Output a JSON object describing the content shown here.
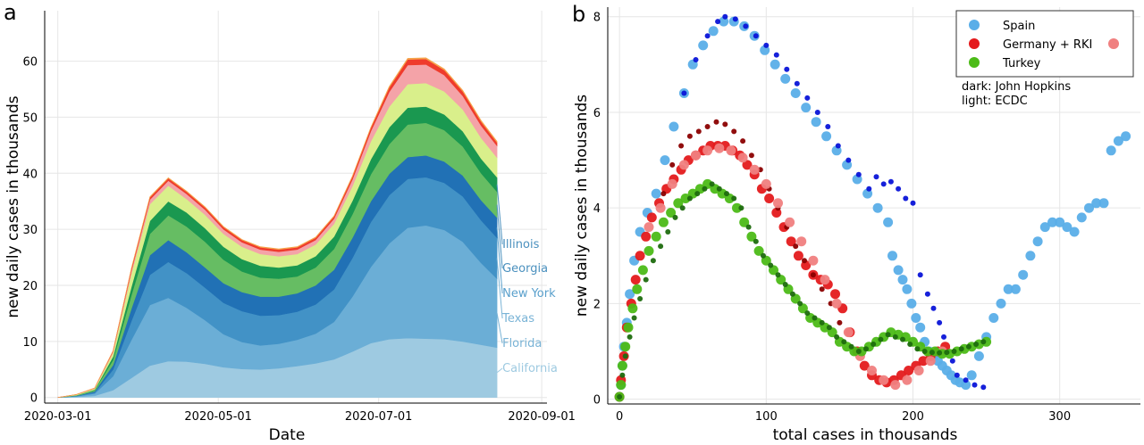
{
  "chart_data": [
    {
      "panel_label": "a",
      "type": "area",
      "stacked": true,
      "xlabel": "Date",
      "ylabel": "new daily cases in thousands",
      "xlim": [
        "2020-02-25",
        "2020-09-03"
      ],
      "ylim": [
        -1,
        69
      ],
      "x_ticks": [
        "2020-03-01",
        "2020-05-01",
        "2020-07-01",
        "2020-09-01"
      ],
      "y_ticks": [
        0,
        10,
        20,
        30,
        40,
        50,
        60
      ],
      "grid": true,
      "x": [
        "2020-03-01",
        "2020-03-08",
        "2020-03-15",
        "2020-03-22",
        "2020-03-29",
        "2020-04-05",
        "2020-04-12",
        "2020-04-19",
        "2020-04-26",
        "2020-05-03",
        "2020-05-10",
        "2020-05-17",
        "2020-05-24",
        "2020-05-31",
        "2020-06-07",
        "2020-06-14",
        "2020-06-21",
        "2020-06-28",
        "2020-07-05",
        "2020-07-12",
        "2020-07-19",
        "2020-07-26",
        "2020-08-02",
        "2020-08-09",
        "2020-08-15"
      ],
      "series": [
        {
          "name": "California",
          "color": "#9ecae1",
          "values": [
            0,
            0.1,
            0.3,
            1.3,
            3.5,
            5.7,
            6.5,
            6.4,
            6.0,
            5.4,
            5.1,
            5.0,
            5.2,
            5.6,
            6.1,
            6.8,
            8.2,
            9.7,
            10.4,
            10.6,
            10.5,
            10.4,
            10.0,
            9.4,
            8.9
          ]
        },
        {
          "name": "Florida",
          "color": "#6baed6",
          "values": [
            0,
            0.1,
            0.4,
            2.5,
            6.8,
            10.8,
            11.3,
            9.6,
            7.8,
            5.9,
            4.8,
            4.3,
            4.4,
            4.7,
            5.3,
            6.7,
            9.8,
            13.6,
            17.1,
            19.7,
            20.2,
            19.5,
            17.8,
            14.6,
            12.3
          ]
        },
        {
          "name": "Texas",
          "color": "#4292c6",
          "values": [
            0,
            0.05,
            0.2,
            1.2,
            3.4,
            5.4,
            6.4,
            6.2,
            5.8,
            5.6,
            5.5,
            5.3,
            5.1,
            5.0,
            5.2,
            5.8,
            6.9,
            8.0,
            8.6,
            8.7,
            8.6,
            8.4,
            8.1,
            7.6,
            7.3
          ]
        },
        {
          "name": "New York",
          "color": "#2171b5",
          "values": [
            0,
            0.05,
            0.2,
            0.8,
            2.2,
            3.5,
            3.9,
            3.7,
            3.6,
            3.5,
            3.4,
            3.4,
            3.3,
            3.3,
            3.4,
            3.5,
            3.6,
            3.7,
            3.8,
            3.9,
            3.9,
            3.8,
            3.7,
            3.6,
            3.6
          ]
        },
        {
          "name": "Georgia",
          "color": "#66bd63",
          "values": [
            0,
            0.05,
            0.2,
            0.9,
            2.4,
            3.8,
            4.4,
            4.6,
            4.6,
            4.2,
            3.7,
            3.4,
            3.2,
            3.0,
            3.2,
            3.7,
            4.2,
            4.8,
            5.3,
            5.8,
            5.8,
            5.6,
            5.2,
            4.8,
            4.6
          ]
        },
        {
          "name": "Illinois",
          "color": "#1a9850",
          "values": [
            0,
            0.05,
            0.1,
            0.6,
            1.5,
            2.3,
            2.5,
            2.5,
            2.4,
            2.3,
            2.2,
            2.1,
            2.0,
            2.0,
            2.0,
            2.2,
            2.4,
            2.7,
            3.0,
            3.0,
            2.9,
            2.8,
            2.7,
            2.6,
            2.6
          ]
        },
        {
          "name": "",
          "color": "#d9ef8b",
          "values": [
            0,
            0.1,
            0.2,
            0.7,
            2.4,
            3.0,
            2.8,
            2.4,
            2.4,
            2.3,
            2.2,
            2.1,
            2.0,
            2.0,
            2.1,
            2.3,
            2.6,
            3.2,
            3.7,
            4.2,
            4.2,
            4.1,
            3.9,
            3.7,
            3.5
          ]
        },
        {
          "name": "",
          "color": "#f4a3a8",
          "values": [
            0,
            0.02,
            0.05,
            0.2,
            0.5,
            0.8,
            0.9,
            0.9,
            0.9,
            0.8,
            0.8,
            0.8,
            0.8,
            0.8,
            0.8,
            0.9,
            1.2,
            1.8,
            2.6,
            3.4,
            3.3,
            2.9,
            2.4,
            2.2,
            2.1
          ]
        },
        {
          "name": "",
          "color": "#ef3b2c",
          "values": [
            0,
            0.01,
            0.03,
            0.1,
            0.3,
            0.4,
            0.4,
            0.4,
            0.4,
            0.4,
            0.4,
            0.4,
            0.4,
            0.4,
            0.4,
            0.4,
            0.5,
            0.6,
            0.8,
            1.0,
            1.0,
            0.9,
            0.8,
            0.7,
            0.6
          ]
        },
        {
          "name": "",
          "color": "#f6a34b",
          "values": [
            0,
            0.01,
            0.02,
            0.05,
            0.1,
            0.1,
            0.1,
            0.1,
            0.1,
            0.1,
            0.1,
            0.1,
            0.1,
            0.1,
            0.1,
            0.1,
            0.1,
            0.1,
            0.2,
            0.2,
            0.2,
            0.2,
            0.2,
            0.2,
            0.2
          ]
        }
      ],
      "state_labels": [
        "Illinois",
        "Georgia",
        "New York",
        "Texas",
        "Florida",
        "California"
      ],
      "state_label_colors": [
        "#4a90be",
        "#4a90be",
        "#5aa0cc",
        "#79b3d6",
        "#79b3d6",
        "#9ecae1"
      ]
    },
    {
      "panel_label": "b",
      "type": "scatter",
      "xlabel": "total cases in thousands",
      "ylabel": "new daily cases in thousands",
      "xlim": [
        -8,
        355
      ],
      "ylim": [
        -0.1,
        8.2
      ],
      "x_ticks": [
        0,
        100,
        200,
        300
      ],
      "y_ticks": [
        0,
        2,
        4,
        6,
        8
      ],
      "grid": true,
      "legend_position": "top-right",
      "legend": [
        {
          "label": "Spain",
          "color": "#5aaee8"
        },
        {
          "label": "Germany + RKI",
          "color": "#e41a1c",
          "extra_color": "#f08080"
        },
        {
          "label": "Turkey",
          "color": "#4cbb17"
        }
      ],
      "legend_note": [
        "dark: John Hopkins",
        "light: ECDC"
      ],
      "series": [
        {
          "name": "Spain",
          "source": "ECDC",
          "color": "#5aaee8",
          "x": [
            0,
            1,
            2,
            3,
            5,
            7,
            10,
            14,
            19,
            25,
            31,
            37,
            44,
            50,
            57,
            64,
            71,
            78,
            85,
            92,
            99,
            106,
            113,
            120,
            127,
            134,
            141,
            148,
            155,
            162,
            169,
            176,
            183,
            186,
            190,
            193,
            196,
            199,
            202,
            205,
            208,
            211,
            214,
            217,
            220,
            223,
            226,
            229,
            232,
            236,
            240,
            245,
            250,
            255,
            260,
            265,
            270,
            275,
            280,
            285,
            290,
            295,
            300,
            305,
            310,
            315,
            320,
            325,
            330,
            335,
            340,
            345
          ],
          "y": [
            0.05,
            0.3,
            0.7,
            1.1,
            1.6,
            2.2,
            2.9,
            3.5,
            3.9,
            4.3,
            5.0,
            5.7,
            6.4,
            7.0,
            7.4,
            7.7,
            7.9,
            7.9,
            7.8,
            7.6,
            7.3,
            7.0,
            6.7,
            6.4,
            6.1,
            5.8,
            5.5,
            5.2,
            4.9,
            4.6,
            4.3,
            4.0,
            3.7,
            3.0,
            2.7,
            2.5,
            2.3,
            2.0,
            1.7,
            1.5,
            1.2,
            1.0,
            0.9,
            0.8,
            0.7,
            0.6,
            0.5,
            0.4,
            0.35,
            0.3,
            0.5,
            0.9,
            1.3,
            1.7,
            2.0,
            2.3,
            2.3,
            2.6,
            3.0,
            3.3,
            3.6,
            3.7,
            3.7,
            3.6,
            3.5,
            3.8,
            4.0,
            4.1,
            4.1,
            5.2,
            5.4,
            5.5
          ]
        },
        {
          "name": "Spain",
          "source": "John Hopkins",
          "color": "#0a14d8",
          "x": [
            44,
            52,
            60,
            67,
            72,
            79,
            86,
            93,
            100,
            107,
            114,
            121,
            128,
            135,
            142,
            149,
            156,
            163,
            170,
            175,
            180,
            185,
            190,
            195,
            200,
            205,
            210,
            214,
            218,
            221,
            224,
            227,
            230,
            236,
            242,
            248
          ],
          "y": [
            6.4,
            7.1,
            7.6,
            7.9,
            8.0,
            7.95,
            7.8,
            7.6,
            7.4,
            7.2,
            6.9,
            6.6,
            6.3,
            6.0,
            5.7,
            5.3,
            5.0,
            4.7,
            4.4,
            4.65,
            4.5,
            4.55,
            4.4,
            4.2,
            4.1,
            2.6,
            2.2,
            1.9,
            1.6,
            1.3,
            1.0,
            0.8,
            0.5,
            0.4,
            0.3,
            0.25
          ]
        },
        {
          "name": "Germany + RKI",
          "source": "ECDC",
          "color": "#e41a1c",
          "x": [
            0,
            1,
            3,
            5,
            8,
            11,
            14,
            18,
            22,
            27,
            32,
            37,
            42,
            47,
            52,
            57,
            62,
            67,
            72,
            77,
            82,
            87,
            92,
            97,
            102,
            107,
            112,
            117,
            122,
            127,
            132,
            137,
            142,
            147,
            152,
            157,
            162,
            167,
            172,
            177,
            182,
            187,
            192,
            197,
            202,
            207,
            212,
            217,
            222
          ],
          "y": [
            0.05,
            0.4,
            0.9,
            1.5,
            2.0,
            2.5,
            3.0,
            3.4,
            3.8,
            4.1,
            4.4,
            4.6,
            4.8,
            5.0,
            5.1,
            5.2,
            5.3,
            5.3,
            5.3,
            5.2,
            5.1,
            4.9,
            4.7,
            4.4,
            4.2,
            3.9,
            3.6,
            3.3,
            3.0,
            2.8,
            2.6,
            2.5,
            2.4,
            2.2,
            1.9,
            1.4,
            1.0,
            0.7,
            0.5,
            0.4,
            0.35,
            0.4,
            0.5,
            0.6,
            0.7,
            0.8,
            0.9,
            1.0,
            1.1
          ]
        },
        {
          "name": "Germany + RKI",
          "source": "John Hopkins",
          "color": "#8b0000",
          "x": [
            30,
            36,
            42,
            48,
            54,
            60,
            66,
            72,
            78,
            84,
            90,
            96,
            102,
            108,
            114,
            120,
            126,
            132,
            138,
            144,
            150
          ],
          "y": [
            4.3,
            4.9,
            5.3,
            5.5,
            5.6,
            5.7,
            5.8,
            5.75,
            5.6,
            5.4,
            5.1,
            4.8,
            4.4,
            4.0,
            3.6,
            3.2,
            2.9,
            2.6,
            2.3,
            2.0,
            1.6
          ]
        },
        {
          "name": "Germany + RKI",
          "source": "RKI",
          "color": "#f08080",
          "x": [
            20,
            28,
            36,
            44,
            52,
            60,
            68,
            76,
            84,
            92,
            100,
            108,
            116,
            124,
            132,
            140,
            148,
            156,
            164,
            172,
            180,
            188,
            196,
            204,
            212,
            220
          ],
          "y": [
            3.6,
            4.0,
            4.5,
            4.9,
            5.1,
            5.2,
            5.25,
            5.2,
            5.05,
            4.8,
            4.5,
            4.1,
            3.7,
            3.3,
            2.9,
            2.5,
            2.0,
            1.4,
            0.9,
            0.6,
            0.4,
            0.3,
            0.4,
            0.6,
            0.8,
            1.0
          ]
        },
        {
          "name": "Turkey",
          "source": "ECDC",
          "color": "#4cbb17",
          "x": [
            0,
            1,
            2,
            4,
            6,
            9,
            12,
            16,
            20,
            25,
            30,
            35,
            40,
            45,
            50,
            55,
            60,
            65,
            70,
            75,
            80,
            85,
            90,
            95,
            100,
            105,
            110,
            115,
            120,
            125,
            130,
            135,
            140,
            145,
            150,
            155,
            160,
            165,
            170,
            175,
            180,
            185,
            190,
            195,
            200,
            205,
            210,
            215,
            220,
            225,
            230,
            235,
            240,
            245,
            250
          ],
          "y": [
            0.05,
            0.3,
            0.7,
            1.1,
            1.5,
            1.9,
            2.3,
            2.7,
            3.1,
            3.4,
            3.7,
            3.9,
            4.1,
            4.2,
            4.3,
            4.4,
            4.5,
            4.4,
            4.3,
            4.2,
            4.0,
            3.7,
            3.4,
            3.1,
            2.9,
            2.7,
            2.5,
            2.3,
            2.1,
            1.9,
            1.7,
            1.6,
            1.5,
            1.4,
            1.2,
            1.1,
            1.0,
            1.0,
            1.1,
            1.2,
            1.3,
            1.4,
            1.35,
            1.3,
            1.2,
            1.1,
            1.0,
            1.0,
            0.95,
            0.95,
            1.0,
            1.05,
            1.1,
            1.15,
            1.2
          ]
        },
        {
          "name": "Turkey",
          "source": "John Hopkins",
          "color": "#1e6b0e",
          "x": [
            0,
            2,
            4,
            7,
            10,
            14,
            18,
            23,
            28,
            33,
            38,
            43,
            48,
            53,
            58,
            63,
            68,
            73,
            78,
            83,
            88,
            93,
            98,
            103,
            108,
            113,
            118,
            123,
            128,
            133,
            138,
            143,
            148,
            153,
            158,
            163,
            168,
            173,
            178,
            183,
            188,
            193,
            198,
            203,
            208,
            213,
            218,
            223,
            228,
            233,
            238,
            243,
            248
          ],
          "y": [
            0.05,
            0.5,
            0.9,
            1.3,
            1.7,
            2.1,
            2.5,
            2.9,
            3.2,
            3.5,
            3.8,
            4.0,
            4.2,
            4.3,
            4.4,
            4.5,
            4.4,
            4.3,
            4.2,
            4.0,
            3.6,
            3.3,
            3.0,
            2.8,
            2.6,
            2.4,
            2.2,
            2.0,
            1.8,
            1.7,
            1.6,
            1.5,
            1.3,
            1.2,
            1.1,
            1.0,
            1.05,
            1.15,
            1.25,
            1.35,
            1.3,
            1.25,
            1.15,
            1.05,
            1.0,
            0.98,
            0.97,
            0.98,
            1.0,
            1.05,
            1.1,
            1.15,
            1.2
          ]
        }
      ]
    }
  ]
}
